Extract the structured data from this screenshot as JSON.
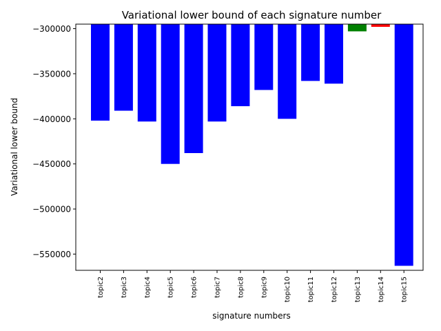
{
  "chart_data": {
    "type": "bar",
    "title": "Variational lower bound of each signature number",
    "xlabel": "signature numbers",
    "ylabel": "Variational lower bound",
    "categories": [
      "topic2",
      "topic3",
      "topic4",
      "topic5",
      "topic6",
      "topic7",
      "topic8",
      "topic9",
      "topic10",
      "topic11",
      "topic12",
      "topic13",
      "topic14",
      "topic15"
    ],
    "values": [
      -402000,
      -391000,
      -403000,
      -450000,
      -438000,
      -403000,
      -386000,
      -368000,
      -400000,
      -358000,
      -361000,
      -303000,
      -298000,
      -563000
    ],
    "bar_colors": [
      "#0000ff",
      "#0000ff",
      "#0000ff",
      "#0000ff",
      "#0000ff",
      "#0000ff",
      "#0000ff",
      "#0000ff",
      "#0000ff",
      "#0000ff",
      "#0000ff",
      "#008000",
      "#ff0000",
      "#0000ff"
    ],
    "baseline": -295000,
    "ylim": [
      -568000,
      -295000
    ],
    "yticks": [
      -300000,
      -350000,
      -400000,
      -450000,
      -500000,
      -550000
    ],
    "ytick_labels": [
      "−300000",
      "−350000",
      "−400000",
      "−450000",
      "−500000",
      "−550000"
    ],
    "grid": false,
    "legend": "none"
  }
}
